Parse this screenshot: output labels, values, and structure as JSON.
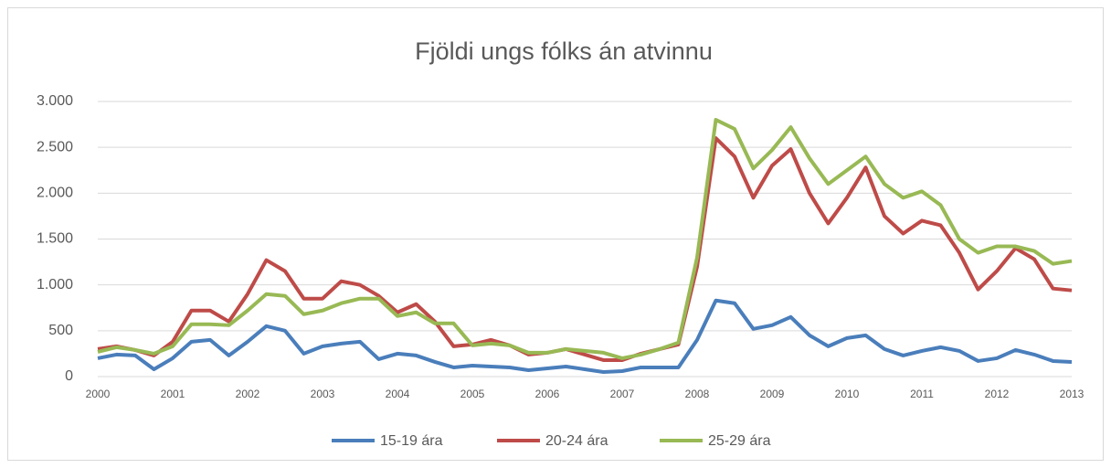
{
  "chart_data": {
    "type": "line",
    "title": "Fjöldi ungs fólks án atvinnu",
    "x": [
      2000,
      2000.25,
      2000.5,
      2000.75,
      2001,
      2001.25,
      2001.5,
      2001.75,
      2002,
      2002.25,
      2002.5,
      2002.75,
      2003,
      2003.25,
      2003.5,
      2003.75,
      2004,
      2004.25,
      2004.5,
      2004.75,
      2005,
      2005.25,
      2005.5,
      2005.75,
      2006,
      2006.25,
      2006.5,
      2006.75,
      2007,
      2007.25,
      2007.5,
      2007.75,
      2008,
      2008.25,
      2008.5,
      2008.75,
      2009,
      2009.25,
      2009.5,
      2009.75,
      2010,
      2010.25,
      2010.5,
      2010.75,
      2011,
      2011.25,
      2011.5,
      2011.75,
      2012,
      2012.25,
      2012.5,
      2012.75,
      2013
    ],
    "series": [
      {
        "name": "15-19 ára",
        "color": "#4a7ebb",
        "values": [
          200,
          240,
          230,
          80,
          200,
          380,
          400,
          230,
          380,
          550,
          500,
          250,
          330,
          360,
          380,
          190,
          250,
          230,
          160,
          100,
          120,
          110,
          100,
          70,
          90,
          110,
          80,
          50,
          60,
          100,
          100,
          100,
          400,
          830,
          800,
          520,
          560,
          650,
          450,
          330,
          420,
          450,
          300,
          230,
          280,
          320,
          280,
          170,
          200,
          290,
          240,
          170,
          160
        ]
      },
      {
        "name": "20-24 ára",
        "color": "#be4b48",
        "values": [
          300,
          330,
          290,
          230,
          380,
          720,
          720,
          600,
          900,
          1270,
          1150,
          850,
          850,
          1040,
          1000,
          880,
          700,
          790,
          600,
          330,
          350,
          400,
          340,
          240,
          260,
          300,
          240,
          180,
          180,
          250,
          300,
          350,
          1200,
          2600,
          2400,
          1950,
          2300,
          2480,
          2000,
          1670,
          1950,
          2280,
          1750,
          1560,
          1700,
          1650,
          1350,
          950,
          1150,
          1400,
          1280,
          960,
          940
        ]
      },
      {
        "name": "25-29 ára",
        "color": "#98b954",
        "values": [
          270,
          320,
          290,
          250,
          330,
          570,
          570,
          560,
          720,
          900,
          880,
          680,
          720,
          800,
          850,
          850,
          660,
          700,
          580,
          580,
          340,
          360,
          340,
          260,
          260,
          300,
          280,
          260,
          200,
          240,
          300,
          370,
          1300,
          2800,
          2700,
          2270,
          2470,
          2720,
          2380,
          2100,
          2250,
          2400,
          2100,
          1950,
          2020,
          1870,
          1500,
          1350,
          1420,
          1420,
          1370,
          1230,
          1260
        ]
      }
    ],
    "xlim": [
      2000,
      2013
    ],
    "xticks": [
      2000,
      2001,
      2002,
      2003,
      2004,
      2005,
      2006,
      2007,
      2008,
      2009,
      2010,
      2011,
      2012,
      2013
    ],
    "ylim": [
      0,
      3000
    ],
    "yticks": [
      0,
      500,
      {
        "value": 1000,
        "label": "1.000"
      },
      {
        "value": 1500,
        "label": "1.500"
      },
      {
        "value": 2000,
        "label": "2.000"
      },
      {
        "value": 2500,
        "label": "2.500"
      },
      {
        "value": 3000,
        "label": "3.000"
      }
    ],
    "grid": true,
    "legend": "bottom"
  }
}
